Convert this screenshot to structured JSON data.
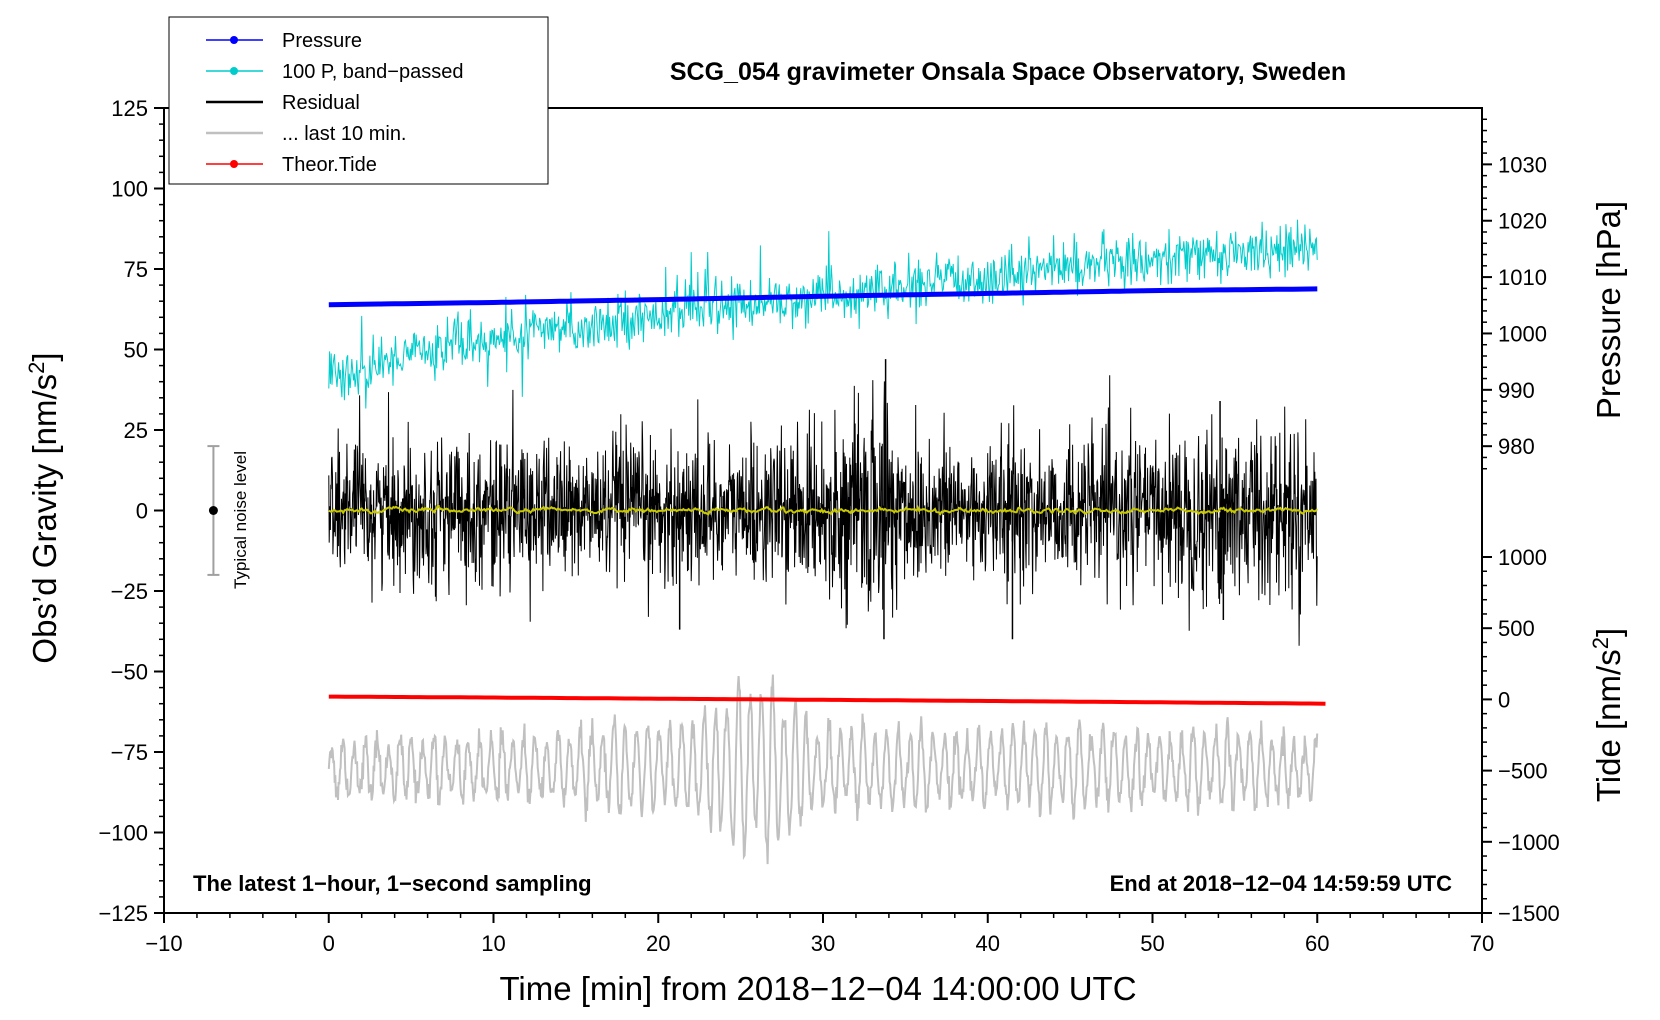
{
  "chart_data": {
    "type": "line",
    "title": "SCG_054 gravimeter Onsala Space Observatory, Sweden",
    "xlabel": "Time [min] from 2018−12−04 14:00:00 UTC",
    "ylabel_main": "Obs’d Gravity [nm/s",
    "ylabel_main_sup": "2",
    "ylabel_main_end": "]",
    "ylabel_pressure": "Pressure [hPa]",
    "ylabel_tide": "Tide [nm/s",
    "ylabel_tide_sup": "2",
    "ylabel_tide_end": "]",
    "xlim": [
      -10,
      70
    ],
    "ylim": [
      -125,
      125
    ],
    "pressure_lim": [
      974,
      1040
    ],
    "tide_lim": [
      -1500,
      1000
    ],
    "x_ticks": [
      {
        "v": -10,
        "t": "−10"
      },
      {
        "v": 0,
        "t": "0"
      },
      {
        "v": 10,
        "t": "10"
      },
      {
        "v": 20,
        "t": "20"
      },
      {
        "v": 30,
        "t": "30"
      },
      {
        "v": 40,
        "t": "40"
      },
      {
        "v": 50,
        "t": "50"
      },
      {
        "v": 60,
        "t": "60"
      },
      {
        "v": 70,
        "t": "70"
      }
    ],
    "y_ticks": [
      {
        "v": 125,
        "t": "125"
      },
      {
        "v": 100,
        "t": "100"
      },
      {
        "v": 75,
        "t": "75"
      },
      {
        "v": 50,
        "t": "50"
      },
      {
        "v": 25,
        "t": "25"
      },
      {
        "v": 0,
        "t": "0"
      },
      {
        "v": -25,
        "t": "−25"
      },
      {
        "v": -50,
        "t": "−50"
      },
      {
        "v": -75,
        "t": "−75"
      },
      {
        "v": -100,
        "t": "−100"
      },
      {
        "v": -125,
        "t": "−125"
      }
    ],
    "pressure_ticks": [
      {
        "v": 1030,
        "t": "1030"
      },
      {
        "v": 1020,
        "t": "1020"
      },
      {
        "v": 1010,
        "t": "1010"
      },
      {
        "v": 1000,
        "t": "1000"
      },
      {
        "v": 990,
        "t": "990"
      },
      {
        "v": 980,
        "t": "980"
      }
    ],
    "tide_ticks": [
      {
        "v": 1000,
        "t": "1000"
      },
      {
        "v": 500,
        "t": "500"
      },
      {
        "v": 0,
        "t": "0"
      },
      {
        "v": -500,
        "t": "−500"
      },
      {
        "v": -1000,
        "t": "−1000"
      },
      {
        "v": -1500,
        "t": "−1500"
      }
    ],
    "legend": [
      {
        "label": "Pressure",
        "color": "#0000ff",
        "style": "line-dot"
      },
      {
        "label": "100 P, band−passed",
        "color": "#00cccc",
        "style": "line-dot"
      },
      {
        "label": "Residual",
        "color": "#000000",
        "style": "line"
      },
      {
        "label": "... last 10 min.",
        "color": "#c0c0c0",
        "style": "line"
      },
      {
        "label": "Theor.Tide",
        "color": "#ff0000",
        "style": "line-dot"
      }
    ],
    "annotations": {
      "bottom_left": "The latest 1−hour, 1−second sampling",
      "bottom_right": "End at 2018−12−04 14:59:59 UTC",
      "noise_label": "Typical noise level"
    },
    "noise_level": {
      "x": -7,
      "center": 0,
      "halfwidth": 20
    },
    "series": [
      {
        "name": "Pressure",
        "axis": "pressure",
        "color": "#0000ff",
        "x": [
          0,
          10,
          20,
          30,
          40,
          50,
          60
        ],
        "y": [
          1005.1,
          1005.5,
          1006.0,
          1006.6,
          1007.1,
          1007.6,
          1007.9
        ]
      },
      {
        "name": "100 P, band-passed",
        "axis": "gravity",
        "color": "#00cccc",
        "x": [
          0,
          2,
          5,
          10,
          15,
          20,
          25,
          30,
          35,
          40,
          45,
          50,
          55,
          60
        ],
        "y": [
          42,
          42,
          50,
          53,
          57,
          61,
          64,
          66,
          69,
          73,
          76,
          78,
          80,
          81
        ],
        "noise_amplitude": 7
      },
      {
        "name": "Residual",
        "axis": "gravity",
        "color": "#000000",
        "x": [
          0,
          10,
          20,
          30,
          33,
          34,
          35,
          40,
          50,
          54,
          60
        ],
        "y": [
          0,
          0,
          0,
          0,
          0,
          0,
          0,
          0,
          0,
          0,
          0
        ],
        "noise_amplitude": [
          11,
          11,
          11,
          11,
          17,
          20,
          13,
          11,
          11,
          15,
          12
        ],
        "extremes": [
          {
            "x": 33.8,
            "y": 47
          },
          {
            "x": 33.7,
            "y": -40
          },
          {
            "x": 54.1,
            "y": 34
          },
          {
            "x": 41.5,
            "y": -40
          },
          {
            "x": 21.3,
            "y": -37
          },
          {
            "x": 54.3,
            "y": -34
          }
        ]
      },
      {
        "name": "Residual smoothed",
        "axis": "gravity",
        "color": "#c8c800",
        "x": [
          0,
          60
        ],
        "y": [
          0,
          0
        ],
        "noise_amplitude": 1
      },
      {
        "name": "... last 10 min.",
        "axis": "gravity",
        "color": "#c0c0c0",
        "x": [
          0,
          60
        ],
        "y": [
          -80,
          -80
        ],
        "amplitude_envelope": [
          [
            0,
            8
          ],
          [
            6,
            10
          ],
          [
            13,
            10
          ],
          [
            18,
            14
          ],
          [
            22,
            14
          ],
          [
            25,
            27
          ],
          [
            27,
            27
          ],
          [
            30,
            13
          ],
          [
            40,
            12
          ],
          [
            45,
            14
          ],
          [
            50,
            10
          ],
          [
            55,
            12
          ],
          [
            60,
            10
          ]
        ],
        "period_min": 0.7
      },
      {
        "name": "Theor.Tide",
        "axis": "tide",
        "color": "#ff0000",
        "x": [
          0,
          10,
          20,
          30,
          40,
          50,
          60.5
        ],
        "y": [
          20,
          13,
          5,
          -3,
          -11,
          -20,
          -30
        ]
      }
    ]
  },
  "colors": {
    "pressure": "#0000ff",
    "bandpassed": "#00cccc",
    "residual": "#000000",
    "smoothed": "#c8c800",
    "last10": "#c0c0c0",
    "tide": "#ff0000",
    "noise_bar": "#a0a0a0"
  }
}
